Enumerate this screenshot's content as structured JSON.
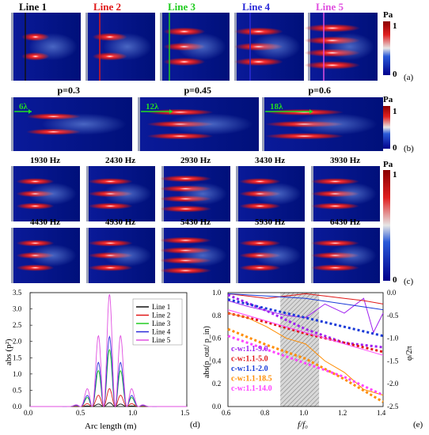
{
  "rowA": {
    "lines": [
      {
        "label": "Line 1",
        "color": "#111111"
      },
      {
        "label": "Line 2",
        "color": "#e01818"
      },
      {
        "label": "Line 3",
        "color": "#22cc22"
      },
      {
        "label": "Line 4",
        "color": "#2b2bd8"
      },
      {
        "label": "Line 5",
        "color": "#e04fe0"
      }
    ],
    "unit": "Pa",
    "cbar_max": "1",
    "cbar_min": "0",
    "tag": "(a)"
  },
  "rowB": {
    "panels": [
      {
        "title": "p=0.3",
        "arrow": "6λ"
      },
      {
        "title": "p=0.45",
        "arrow": "12λ"
      },
      {
        "title": "p=0.6",
        "arrow": "18λ"
      }
    ],
    "unit": "Pa",
    "cbar_max": "1",
    "cbar_min": "0",
    "tag": "(b)"
  },
  "rowC": {
    "freqs": [
      "1930 Hz",
      "2430 Hz",
      "2930 Hz",
      "3430 Hz",
      "3930 Hz",
      "4430 Hz",
      "4930 Hz",
      "5430 Hz",
      "5930 Hz",
      "6430 Hz"
    ],
    "unit": "Pa",
    "cbar_max": "1",
    "cbar_min": "0",
    "tag": "(c)"
  },
  "chart_data": [
    {
      "type": "line",
      "tag": "(d)",
      "xlabel": "Arc length (m)",
      "ylabel": "abs (p²)",
      "xlim": [
        0,
        1.5
      ],
      "ylim": [
        0,
        3.5
      ],
      "xticks": [
        "0.0",
        "0.5",
        "1.0",
        "1.5"
      ],
      "yticks": [
        "0.0",
        "0.5",
        "1.0",
        "1.5",
        "2.0",
        "2.5",
        "3.0",
        "3.5"
      ],
      "legend_position": "top-right",
      "series": [
        {
          "name": "Line 1",
          "color": "#111111",
          "peak": 0.12
        },
        {
          "name": "Line 2",
          "color": "#e01818",
          "peak": 0.55
        },
        {
          "name": "Line 3",
          "color": "#22cc22",
          "peak": 1.75
        },
        {
          "name": "Line 4",
          "color": "#2b2bd8",
          "peak": 2.15
        },
        {
          "name": "Line 5",
          "color": "#e04fe0",
          "peak": 3.45
        }
      ]
    },
    {
      "type": "line",
      "tag": "(e)",
      "xlabel": "f/f₀",
      "ylabel_left": "abs(p_out/ p_in)",
      "ylabel_right": "φ/2π",
      "xlim": [
        0.6,
        1.4
      ],
      "ylim_left": [
        0,
        1.0
      ],
      "ylim_right": [
        -2.5,
        0
      ],
      "xticks": [
        "0.6",
        "0.8",
        "1.0",
        "1.2",
        "1.4"
      ],
      "yticks_left": [
        "0.0",
        "0.2",
        "0.4",
        "0.6",
        "0.8",
        "1.0"
      ],
      "yticks_right": [
        "0.0",
        "-0.5",
        "-1.0",
        "-1.5",
        "-2.0",
        "-2.5"
      ],
      "shaded_band": [
        0.87,
        1.07
      ],
      "series": [
        {
          "name": "c-w:1.1-9.0",
          "color": "#a020f0",
          "amp": [
            [
              0.6,
              0.93
            ],
            [
              0.7,
              0.88
            ],
            [
              0.8,
              0.84
            ],
            [
              0.9,
              0.8
            ],
            [
              1.0,
              0.78
            ],
            [
              1.1,
              0.9
            ],
            [
              1.2,
              0.82
            ],
            [
              1.3,
              0.95
            ],
            [
              1.35,
              0.65
            ],
            [
              1.4,
              0.82
            ]
          ],
          "phase": [
            [
              0.6,
              -0.05
            ],
            [
              0.8,
              -0.4
            ],
            [
              1.0,
              -0.8
            ],
            [
              1.2,
              -1.1
            ],
            [
              1.4,
              -1.2
            ]
          ]
        },
        {
          "name": "c-w:1.1-5.0",
          "color": "#e01818",
          "amp": [
            [
              0.6,
              0.99
            ],
            [
              0.7,
              0.97
            ],
            [
              0.8,
              0.95
            ],
            [
              0.9,
              0.97
            ],
            [
              1.0,
              0.99
            ],
            [
              1.1,
              0.97
            ],
            [
              1.2,
              0.95
            ],
            [
              1.3,
              0.93
            ],
            [
              1.4,
              0.9
            ]
          ],
          "phase": [
            [
              0.6,
              -0.45
            ],
            [
              0.8,
              -0.65
            ],
            [
              1.0,
              -0.9
            ],
            [
              1.2,
              -1.1
            ],
            [
              1.4,
              -1.3
            ]
          ]
        },
        {
          "name": "c-w:1.1-2.0",
          "color": "#1a3ad8",
          "amp": [
            [
              0.6,
              0.99
            ],
            [
              0.8,
              0.97
            ],
            [
              1.0,
              0.95
            ],
            [
              1.2,
              0.9
            ],
            [
              1.4,
              0.85
            ]
          ],
          "phase": [
            [
              0.6,
              -0.15
            ],
            [
              0.8,
              -0.35
            ],
            [
              1.0,
              -0.55
            ],
            [
              1.2,
              -0.75
            ],
            [
              1.4,
              -0.95
            ]
          ]
        },
        {
          "name": "c-w:1.1-18.5",
          "color": "#ff8c00",
          "amp": [
            [
              0.6,
              0.82
            ],
            [
              0.7,
              0.78
            ],
            [
              0.8,
              0.7
            ],
            [
              0.9,
              0.6
            ],
            [
              1.0,
              0.55
            ],
            [
              1.1,
              0.4
            ],
            [
              1.2,
              0.3
            ],
            [
              1.3,
              0.15
            ],
            [
              1.4,
              0.1
            ]
          ],
          "phase": [
            [
              0.6,
              -0.8
            ],
            [
              0.8,
              -1.15
            ],
            [
              1.0,
              -1.45
            ],
            [
              1.2,
              -1.9
            ],
            [
              1.4,
              -2.4
            ]
          ]
        },
        {
          "name": "c-w:1.1-14.0",
          "color": "#ff44ff",
          "amp": [
            [
              0.6,
              0.85
            ],
            [
              0.8,
              0.75
            ],
            [
              1.0,
              0.65
            ],
            [
              1.2,
              0.55
            ],
            [
              1.4,
              0.45
            ]
          ],
          "phase": [
            [
              0.6,
              -0.95
            ],
            [
              0.8,
              -1.25
            ],
            [
              1.0,
              -1.55
            ],
            [
              1.2,
              -1.85
            ],
            [
              1.4,
              -2.25
            ]
          ]
        }
      ]
    }
  ]
}
